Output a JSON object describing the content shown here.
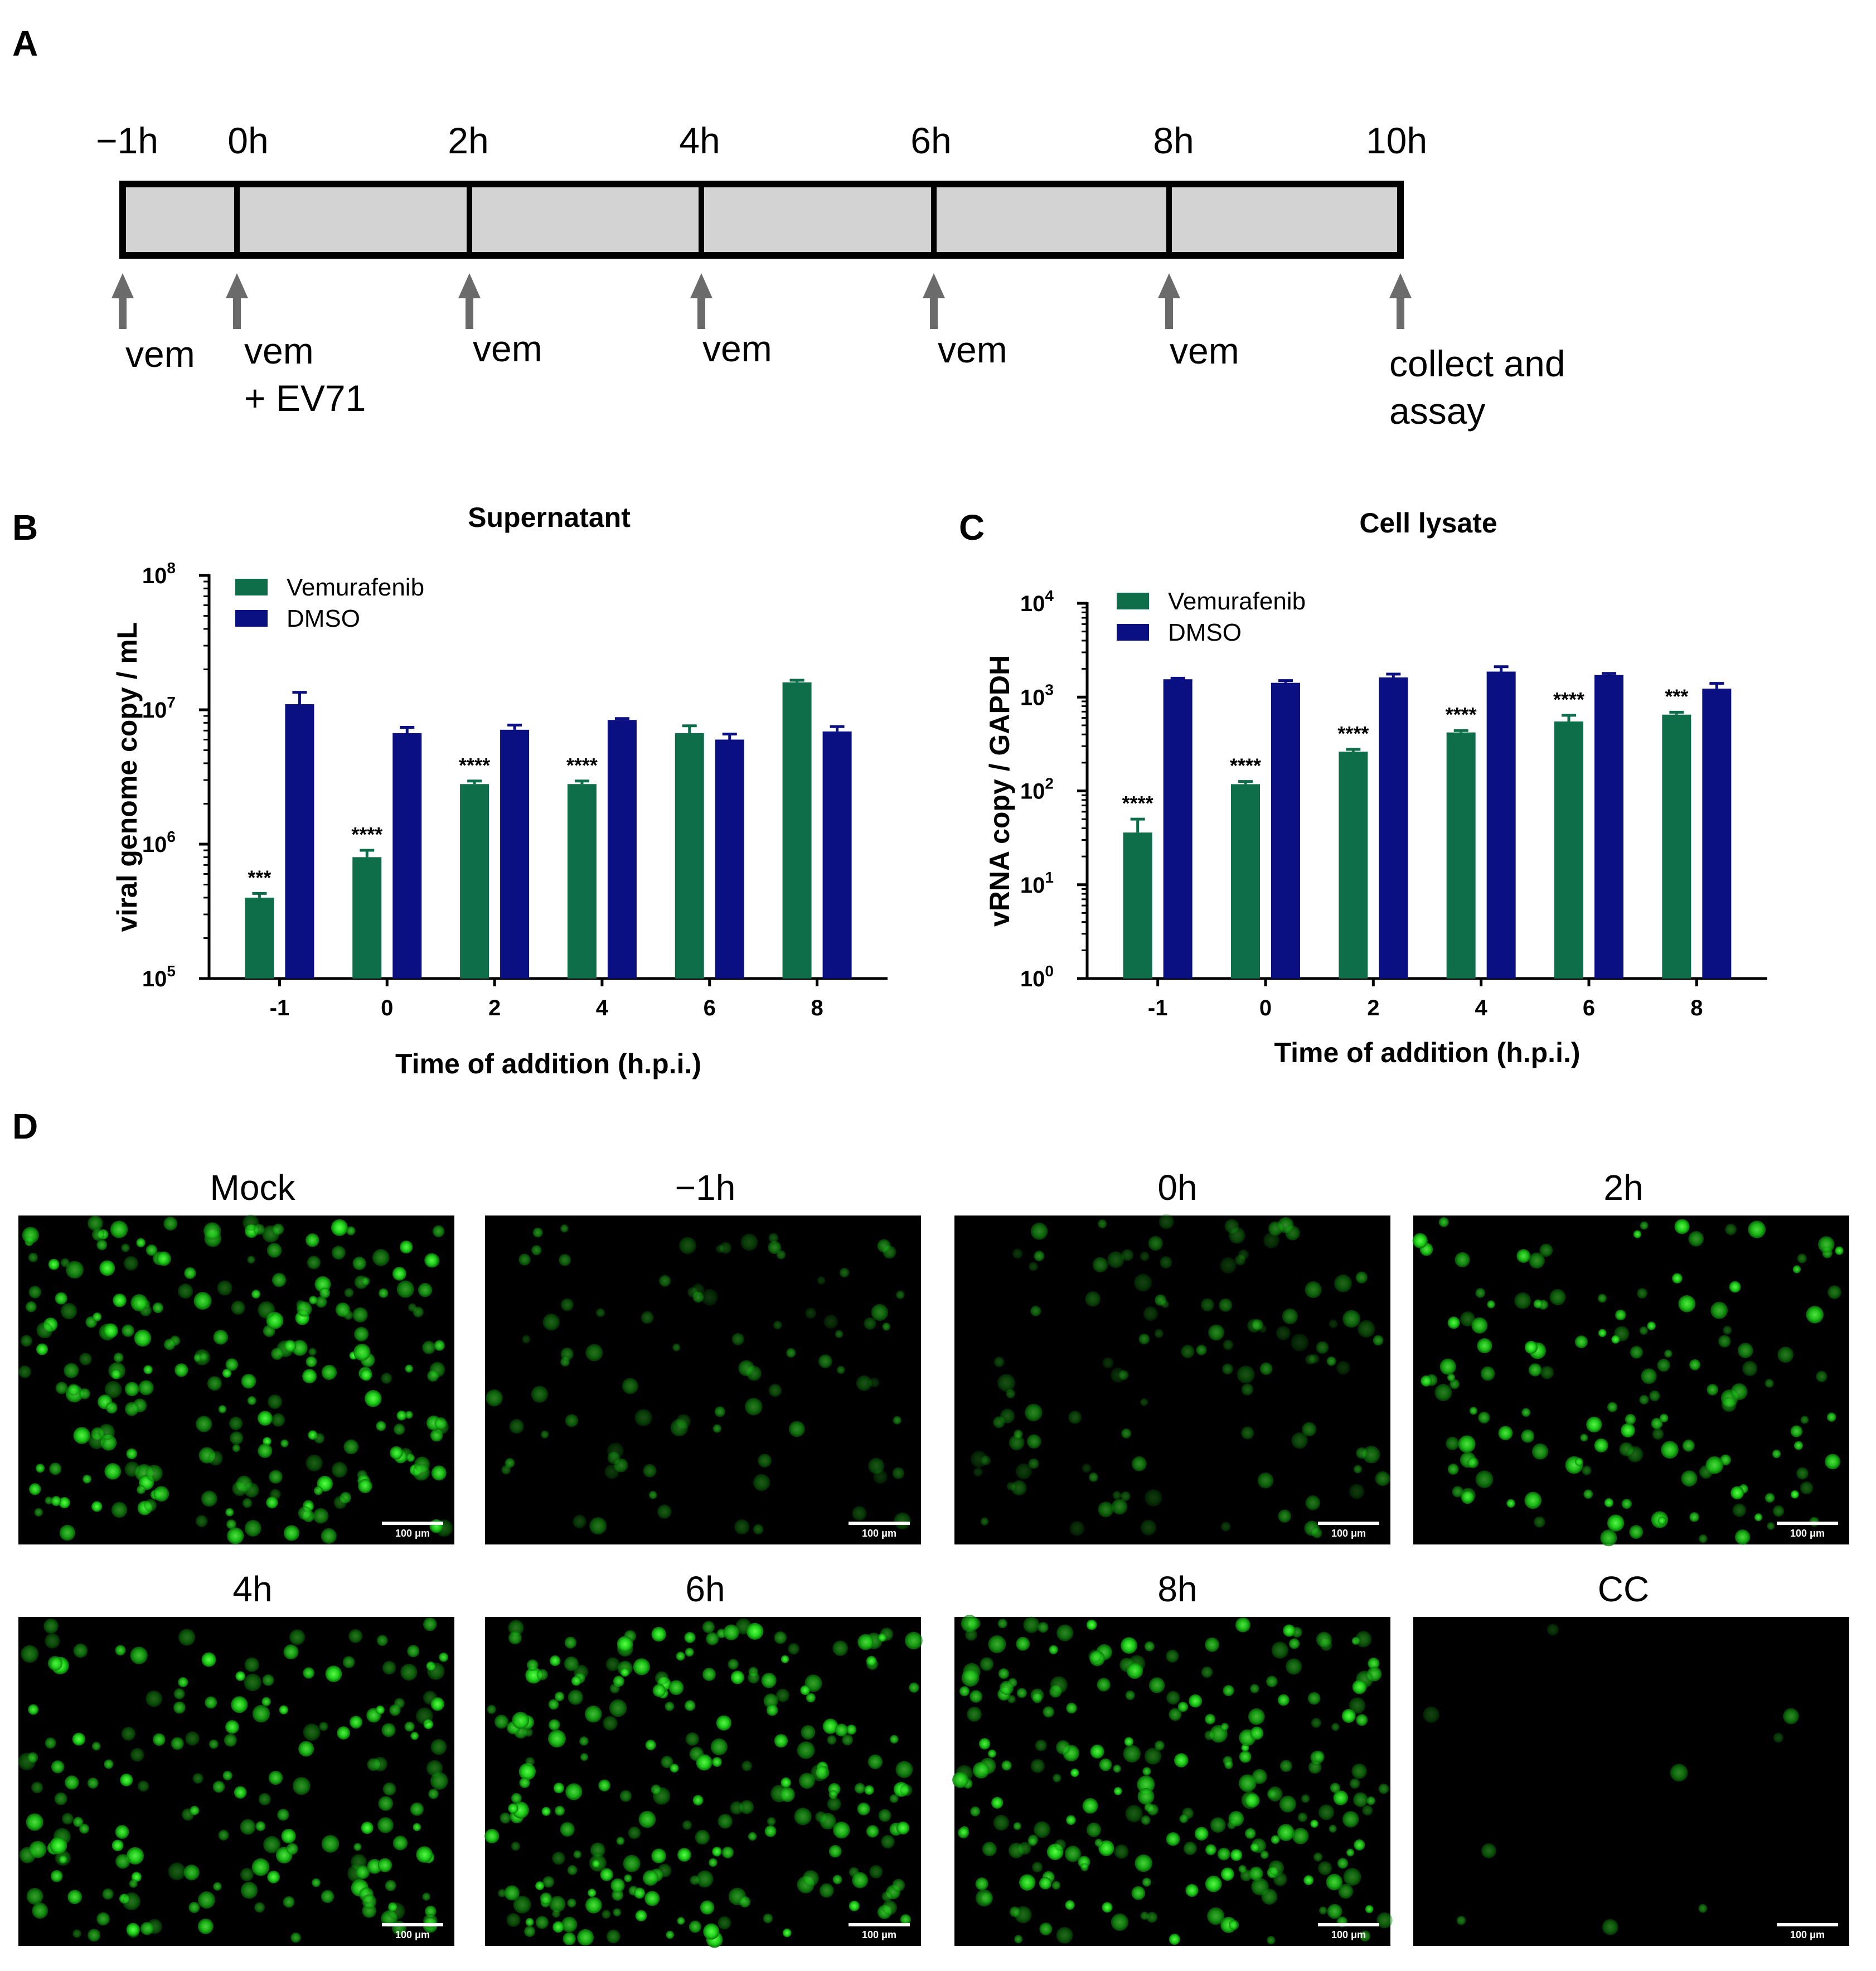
{
  "panels": {
    "a": "A",
    "b": "B",
    "c": "C",
    "d": "D"
  },
  "timeline": {
    "times": [
      "−1h",
      "0h",
      "2h",
      "4h",
      "6h",
      "8h",
      "10h"
    ],
    "events": [
      {
        "lines": [
          "vem"
        ]
      },
      {
        "lines": [
          "vem",
          "+ EV71"
        ]
      },
      {
        "lines": [
          "vem"
        ]
      },
      {
        "lines": [
          "vem"
        ]
      },
      {
        "lines": [
          "vem"
        ]
      },
      {
        "lines": [
          "vem"
        ]
      },
      {
        "lines": [
          "collect and",
          "assay"
        ]
      }
    ],
    "colors": {
      "box": "#d3d3d3",
      "arrow": "#6b6b6b"
    }
  },
  "colors": {
    "vemurafenib": "#0e6e4a",
    "dmso": "#0a0f82"
  },
  "chart_data": [
    {
      "type": "bar",
      "title": "Supernatant",
      "xlabel": "Time of addition (h.p.i.)",
      "ylabel": "viral genome copy / mL",
      "categories": [
        "-1",
        "0",
        "2",
        "4",
        "6",
        "8"
      ],
      "y_scale": "log",
      "ylim": [
        100000,
        100000000
      ],
      "yticks": [
        {
          "base": "10",
          "exp": "5",
          "value": 100000
        },
        {
          "base": "10",
          "exp": "6",
          "value": 1000000
        },
        {
          "base": "10",
          "exp": "7",
          "value": 10000000
        },
        {
          "base": "10",
          "exp": "8",
          "value": 100000000
        }
      ],
      "legend": "top-left",
      "series": [
        {
          "name": "Vemurafenib",
          "values": [
            400000,
            800000,
            2800000,
            2800000,
            6700000,
            16000000
          ],
          "errors": [
            430000,
            900000,
            2950000,
            2950000,
            7600000,
            16600000
          ]
        },
        {
          "name": "DMSO",
          "values": [
            11000000,
            6700000,
            7100000,
            8400000,
            6000000,
            6900000
          ],
          "errors": [
            13500000,
            7400000,
            7700000,
            8600000,
            6600000,
            7500000
          ]
        }
      ],
      "significance": [
        "***",
        "****",
        "****",
        "****",
        "",
        ""
      ]
    },
    {
      "type": "bar",
      "title": "Cell lysate",
      "xlabel": "Time of addition (h.p.i.)",
      "ylabel": "vRNA copy / GAPDH",
      "categories": [
        "-1",
        "0",
        "2",
        "4",
        "6",
        "8"
      ],
      "y_scale": "log",
      "ylim": [
        1,
        10000
      ],
      "yticks": [
        {
          "base": "10",
          "exp": "0",
          "value": 1
        },
        {
          "base": "10",
          "exp": "1",
          "value": 10
        },
        {
          "base": "10",
          "exp": "2",
          "value": 100
        },
        {
          "base": "10",
          "exp": "3",
          "value": 1000
        },
        {
          "base": "10",
          "exp": "4",
          "value": 10000
        }
      ],
      "legend": "top-left",
      "series": [
        {
          "name": "Vemurafenib",
          "values": [
            36,
            118,
            262,
            420,
            550,
            650
          ],
          "errors": [
            50,
            126,
            277,
            440,
            640,
            690
          ]
        },
        {
          "name": "DMSO",
          "values": [
            1550,
            1420,
            1620,
            1870,
            1720,
            1230
          ],
          "errors": [
            1590,
            1500,
            1760,
            2110,
            1790,
            1400
          ]
        }
      ],
      "significance": [
        "****",
        "****",
        "****",
        "****",
        "****",
        "***"
      ]
    }
  ],
  "images": {
    "labels": [
      "Mock",
      "−1h",
      "0h",
      "2h",
      "4h",
      "6h",
      "8h",
      "CC"
    ],
    "intensity": [
      1.0,
      0.35,
      0.45,
      0.6,
      0.75,
      1.0,
      1.0,
      0.04
    ],
    "scale_bar": "100 μm"
  }
}
